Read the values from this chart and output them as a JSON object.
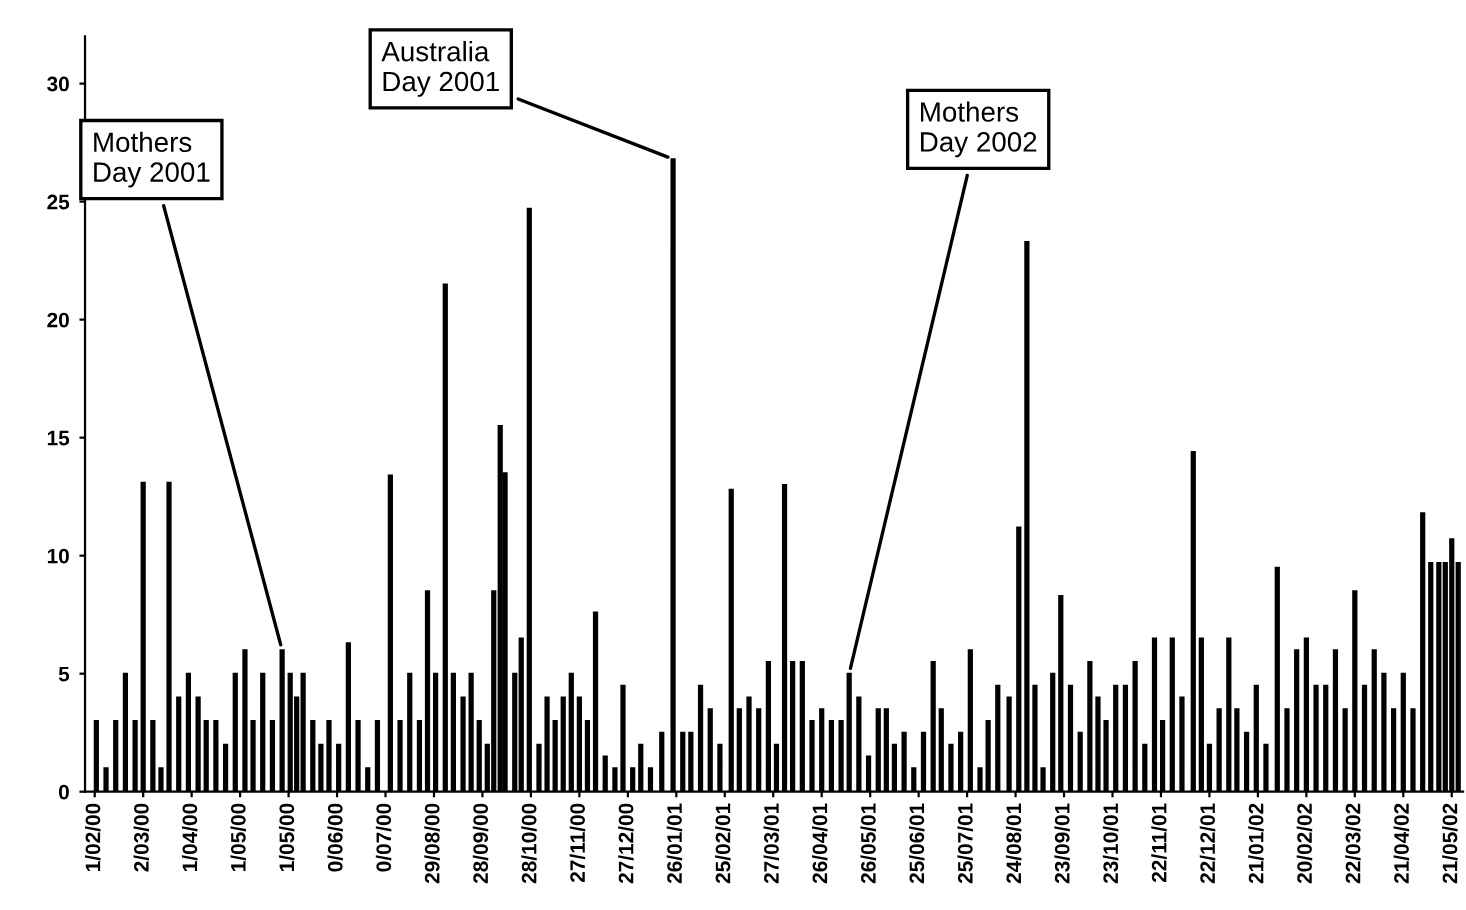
{
  "chart_data": {
    "type": "bar",
    "x": [
      "2000-02-02",
      "2000-02-08",
      "2000-02-14",
      "2000-02-20",
      "2000-02-26",
      "2000-03-02",
      "2000-03-08",
      "2000-03-13",
      "2000-03-18",
      "2000-03-24",
      "2000-03-30",
      "2000-04-05",
      "2000-04-10",
      "2000-04-16",
      "2000-04-22",
      "2000-04-28",
      "2000-05-04",
      "2000-05-09",
      "2000-05-15",
      "2000-05-21",
      "2000-05-27",
      "2000-06-01",
      "2000-06-05",
      "2000-06-09",
      "2000-06-15",
      "2000-06-20",
      "2000-06-25",
      "2000-07-01",
      "2000-07-07",
      "2000-07-13",
      "2000-07-19",
      "2000-07-25",
      "2000-08-02",
      "2000-08-08",
      "2000-08-14",
      "2000-08-20",
      "2000-08-25",
      "2000-08-30",
      "2000-09-05",
      "2000-09-10",
      "2000-09-16",
      "2000-09-21",
      "2000-09-26",
      "2000-10-01",
      "2000-10-05",
      "2000-10-09",
      "2000-10-12",
      "2000-10-18",
      "2000-10-22",
      "2000-10-27",
      "2000-11-02",
      "2000-11-07",
      "2000-11-12",
      "2000-11-17",
      "2000-11-22",
      "2000-11-27",
      "2000-12-02",
      "2000-12-07",
      "2000-12-13",
      "2000-12-19",
      "2000-12-24",
      "2000-12-30",
      "2001-01-04",
      "2001-01-10",
      "2001-01-17",
      "2001-01-24",
      "2001-01-30",
      "2001-02-04",
      "2001-02-10",
      "2001-02-16",
      "2001-02-22",
      "2001-03-01",
      "2001-03-06",
      "2001-03-12",
      "2001-03-18",
      "2001-03-24",
      "2001-03-29",
      "2001-04-03",
      "2001-04-08",
      "2001-04-14",
      "2001-04-20",
      "2001-04-26",
      "2001-05-02",
      "2001-05-08",
      "2001-05-13",
      "2001-05-19",
      "2001-05-25",
      "2001-05-31",
      "2001-06-05",
      "2001-06-10",
      "2001-06-16",
      "2001-06-22",
      "2001-06-28",
      "2001-07-04",
      "2001-07-09",
      "2001-07-15",
      "2001-07-21",
      "2001-07-27",
      "2001-08-02",
      "2001-08-07",
      "2001-08-13",
      "2001-08-20",
      "2001-08-26",
      "2001-08-31",
      "2001-09-05",
      "2001-09-10",
      "2001-09-16",
      "2001-09-21",
      "2001-09-27",
      "2001-10-03",
      "2001-10-09",
      "2001-10-14",
      "2001-10-19",
      "2001-10-25",
      "2001-10-31",
      "2001-11-06",
      "2001-11-12",
      "2001-11-18",
      "2001-11-23",
      "2001-11-29",
      "2001-12-05",
      "2001-12-12",
      "2001-12-17",
      "2001-12-22",
      "2001-12-28",
      "2002-01-03",
      "2002-01-08",
      "2002-01-14",
      "2002-01-20",
      "2002-01-26",
      "2002-02-02",
      "2002-02-08",
      "2002-02-14",
      "2002-02-20",
      "2002-02-26",
      "2002-03-04",
      "2002-03-10",
      "2002-03-16",
      "2002-03-22",
      "2002-03-28",
      "2002-04-03",
      "2002-04-09",
      "2002-04-15",
      "2002-04-21",
      "2002-04-27",
      "2002-05-03",
      "2002-05-08",
      "2002-05-13",
      "2002-05-17",
      "2002-05-21",
      "2002-05-25"
    ],
    "values": [
      3,
      1,
      3,
      5,
      3,
      13.1,
      3,
      1,
      13.1,
      4,
      5,
      4,
      3,
      3,
      2,
      5,
      6,
      3,
      5,
      3,
      6,
      5,
      4,
      5,
      3,
      2,
      3,
      2,
      6.3,
      3,
      1,
      3,
      13.4,
      3,
      5,
      3,
      8.5,
      5,
      21.5,
      5,
      4,
      5,
      3,
      2,
      8.5,
      15.5,
      13.5,
      5,
      6.5,
      24.7,
      2,
      4,
      3,
      4,
      5,
      4,
      3,
      7.6,
      1.5,
      1,
      4.5,
      1,
      2,
      1,
      2.5,
      26.8,
      2.5,
      2.5,
      4.5,
      3.5,
      2,
      12.8,
      3.5,
      4,
      3.5,
      5.5,
      2,
      13,
      5.5,
      5.5,
      3,
      3.5,
      3,
      3,
      5,
      4,
      1.5,
      3.5,
      3.5,
      2,
      2.5,
      1,
      2.5,
      5.5,
      3.5,
      2,
      2.5,
      6,
      1,
      3,
      4.5,
      4,
      11.2,
      23.3,
      4.5,
      1,
      5,
      8.3,
      4.5,
      2.5,
      5.5,
      4,
      3,
      4.5,
      4.5,
      5.5,
      2,
      6.5,
      3,
      6.5,
      4,
      14.4,
      6.5,
      2,
      3.5,
      6.5,
      3.5,
      2.5,
      4.5,
      2,
      9.5,
      3.5,
      6,
      6.5,
      4.5,
      4.5,
      6,
      3.5,
      8.5,
      4.5,
      6,
      5,
      3.5,
      5,
      3.5,
      11.8,
      9.7,
      9.7,
      9.7,
      10.7,
      9.7
    ],
    "color": "#000000",
    "xlim": [
      "2000-01-26",
      "2002-05-28"
    ],
    "xticks": [
      {
        "value": "2000-02-01",
        "label": "1/02/00"
      },
      {
        "value": "2000-03-02",
        "label": "2/03/00"
      },
      {
        "value": "2000-04-01",
        "label": "1/04/00"
      },
      {
        "value": "2000-05-01",
        "label": "1/05/00"
      },
      {
        "value": "2000-05-31",
        "label": "1/05/00"
      },
      {
        "value": "2000-06-30",
        "label": "0/06/00"
      },
      {
        "value": "2000-07-30",
        "label": "0/07/00"
      },
      {
        "value": "2000-08-29",
        "label": "29/08/00"
      },
      {
        "value": "2000-09-28",
        "label": "28/09/00"
      },
      {
        "value": "2000-10-28",
        "label": "28/10/00"
      },
      {
        "value": "2000-11-27",
        "label": "27/11/00"
      },
      {
        "value": "2000-12-27",
        "label": "27/12/00"
      },
      {
        "value": "2001-01-26",
        "label": "26/01/01"
      },
      {
        "value": "2001-02-25",
        "label": "25/02/01"
      },
      {
        "value": "2001-03-27",
        "label": "27/03/01"
      },
      {
        "value": "2001-04-26",
        "label": "26/04/01"
      },
      {
        "value": "2001-05-26",
        "label": "26/05/01"
      },
      {
        "value": "2001-06-25",
        "label": "25/06/01"
      },
      {
        "value": "2001-07-25",
        "label": "25/07/01"
      },
      {
        "value": "2001-08-24",
        "label": "24/08/01"
      },
      {
        "value": "2001-09-23",
        "label": "23/09/01"
      },
      {
        "value": "2001-10-23",
        "label": "23/10/01"
      },
      {
        "value": "2001-11-22",
        "label": "22/11/01"
      },
      {
        "value": "2001-12-22",
        "label": "22/12/01"
      },
      {
        "value": "2002-01-21",
        "label": "21/01/02"
      },
      {
        "value": "2002-02-20",
        "label": "20/02/02"
      },
      {
        "value": "2002-03-22",
        "label": "22/03/02"
      },
      {
        "value": "2002-04-21",
        "label": "21/04/02"
      },
      {
        "value": "2002-05-21",
        "label": "21/05/02"
      }
    ],
    "ylim": [
      0,
      32
    ],
    "yticks": [
      0,
      5,
      10,
      15,
      20,
      25,
      30
    ],
    "grid": false,
    "legend": false,
    "annotations": [
      {
        "text": "Mothers\nDay 2001",
        "x": "2000-05-27",
        "y": 6
      },
      {
        "text": "Australia\nDay 2001",
        "x": "2001-01-24",
        "y": 26.8
      },
      {
        "text": "Mothers\nDay 2002",
        "x": "2001-05-13",
        "y": 5
      }
    ]
  }
}
